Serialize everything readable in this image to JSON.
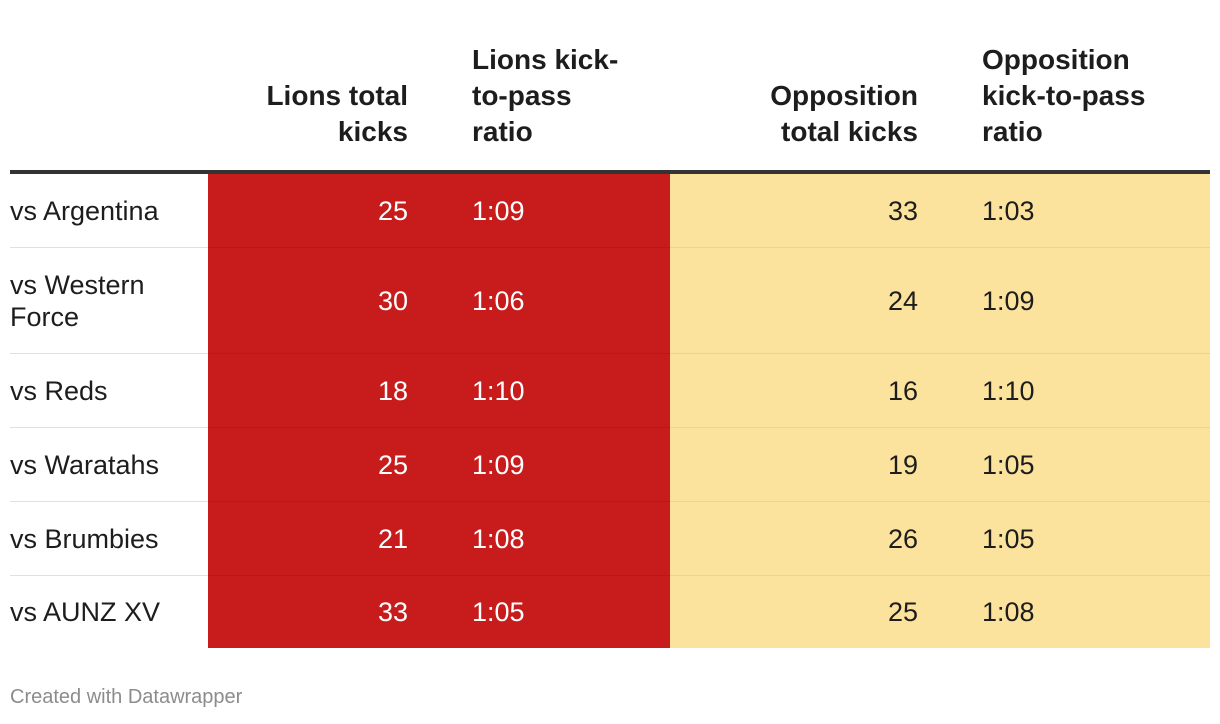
{
  "chart_data": {
    "type": "table",
    "columns": [
      "",
      "Lions total kicks",
      "Lions kick-to-pass ratio",
      "Opposition total kicks",
      "Opposition kick-to-pass ratio"
    ],
    "header_lines": {
      "lions_kicks": [
        "Lions total",
        "kicks"
      ],
      "lions_ratio": [
        "Lions kick-",
        "to-pass",
        "ratio"
      ],
      "opp_kicks": [
        "Opposition",
        "total kicks"
      ],
      "opp_ratio": [
        "Opposition",
        "kick-to-pass",
        "ratio"
      ]
    },
    "rows": [
      {
        "name": "vs Argentina",
        "lions_kicks": "25",
        "lions_ratio": "1:09",
        "opp_kicks": "33",
        "opp_ratio": "1:03"
      },
      {
        "name": "vs Western Force",
        "lions_kicks": "30",
        "lions_ratio": "1:06",
        "opp_kicks": "24",
        "opp_ratio": "1:09"
      },
      {
        "name": "vs Reds",
        "lions_kicks": "18",
        "lions_ratio": "1:10",
        "opp_kicks": "16",
        "opp_ratio": "1:10"
      },
      {
        "name": "vs Waratahs",
        "lions_kicks": "25",
        "lions_ratio": "1:09",
        "opp_kicks": "19",
        "opp_ratio": "1:05"
      },
      {
        "name": "vs Brumbies",
        "lions_kicks": "21",
        "lions_ratio": "1:08",
        "opp_kicks": "26",
        "opp_ratio": "1:05"
      },
      {
        "name": "vs AUNZ XV",
        "lions_kicks": "33",
        "lions_ratio": "1:05",
        "opp_kicks": "25",
        "opp_ratio": "1:08"
      }
    ],
    "colors": {
      "lions": "#c81b1b",
      "opposition": "#fce39d"
    }
  },
  "footer": {
    "credit": "Created with Datawrapper"
  }
}
